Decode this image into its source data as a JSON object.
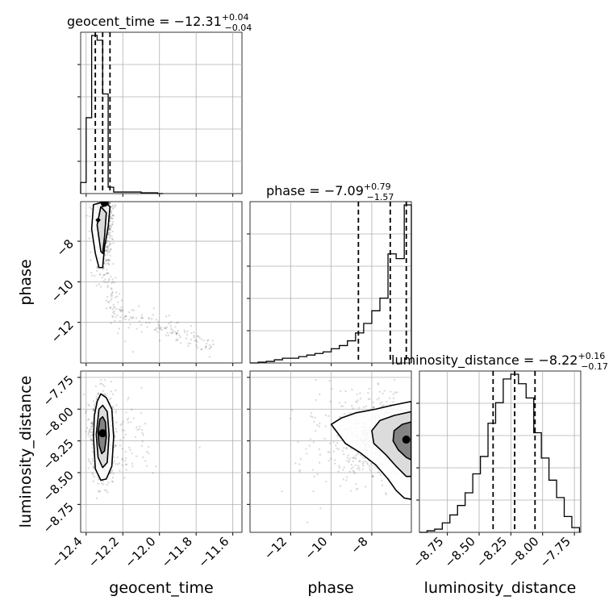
{
  "chart_data": {
    "type": "corner",
    "parameters": [
      "geocent_time",
      "phase",
      "luminosity_distance"
    ],
    "titles": [
      {
        "param": "geocent_time",
        "text": "geocent_time = −12.31",
        "plus": "+0.04",
        "minus": "−0.04"
      },
      {
        "param": "phase",
        "text": "phase = −7.09",
        "plus": "+0.79",
        "minus": "−1.57"
      },
      {
        "param": "luminosity_distance",
        "text": "luminosity_distance = −8.22",
        "plus": "+0.16",
        "minus": "−0.17"
      }
    ],
    "axis_labels": {
      "geocent_time": "geocent_time",
      "phase": "phase",
      "luminosity_distance": "luminosity_distance"
    },
    "ranges": {
      "geocent_time": [
        -12.43,
        -11.55
      ],
      "phase": [
        -14.0,
        -6.05
      ],
      "luminosity_distance": [
        -8.97,
        -7.7
      ]
    },
    "ticks": {
      "geocent_time": [
        {
          "v": -12.4,
          "label": "−12.4"
        },
        {
          "v": -12.2,
          "label": "−12.2"
        },
        {
          "v": -12.0,
          "label": "−12.0"
        },
        {
          "v": -11.8,
          "label": "−11.8"
        },
        {
          "v": -11.6,
          "label": "−11.6"
        }
      ],
      "phase": [
        {
          "v": -12,
          "label": "−12"
        },
        {
          "v": -10,
          "label": "−10"
        },
        {
          "v": -8,
          "label": "−8"
        }
      ],
      "luminosity_distance": [
        {
          "v": -8.75,
          "label": "−8.75"
        },
        {
          "v": -8.5,
          "label": "−8.50"
        },
        {
          "v": -8.25,
          "label": "−8.25"
        },
        {
          "v": -8.0,
          "label": "−8.00"
        },
        {
          "v": -7.75,
          "label": "−7.75"
        }
      ]
    },
    "quantiles": {
      "geocent_time": [
        -12.35,
        -12.31,
        -12.27
      ],
      "phase": [
        -8.66,
        -7.09,
        -6.3
      ],
      "luminosity_distance": [
        -8.39,
        -8.22,
        -8.06
      ]
    },
    "histograms": {
      "geocent_time": {
        "edges": [
          -12.43,
          -12.4,
          -12.37,
          -12.34,
          -12.31,
          -12.28,
          -12.25,
          -12.22,
          -12.19,
          -12.16,
          -12.13,
          -12.1,
          -12.07,
          -12.04,
          -12.01,
          -11.98
        ],
        "heights": [
          0.07,
          0.48,
          1.0,
          0.97,
          0.63,
          0.04,
          0.01,
          0.01,
          0.01,
          0.01,
          0.01,
          0.005,
          0.005,
          0.005,
          0.0
        ]
      },
      "phase": {
        "edges": [
          -14.0,
          -13.6,
          -13.2,
          -12.8,
          -12.4,
          -12.0,
          -11.6,
          -11.2,
          -10.8,
          -10.4,
          -10.0,
          -9.6,
          -9.2,
          -8.8,
          -8.4,
          -8.0,
          -7.6,
          -7.2,
          -6.8,
          -6.4,
          -6.05
        ],
        "heights": [
          0.0,
          0.005,
          0.01,
          0.02,
          0.03,
          0.03,
          0.04,
          0.05,
          0.06,
          0.07,
          0.09,
          0.11,
          0.14,
          0.19,
          0.25,
          0.33,
          0.41,
          0.69,
          0.66,
          1.0
        ]
      },
      "luminosity_distance": {
        "edges": [
          -8.97,
          -8.91,
          -8.85,
          -8.79,
          -8.73,
          -8.67,
          -8.61,
          -8.55,
          -8.49,
          -8.43,
          -8.37,
          -8.31,
          -8.25,
          -8.19,
          -8.13,
          -8.07,
          -8.01,
          -7.95,
          -7.89,
          -7.83,
          -7.77,
          -7.71
        ],
        "heights": [
          0.0,
          0.01,
          0.02,
          0.06,
          0.11,
          0.17,
          0.25,
          0.37,
          0.48,
          0.69,
          0.82,
          0.97,
          1.0,
          0.94,
          0.85,
          0.63,
          0.47,
          0.33,
          0.22,
          0.1,
          0.03
        ]
      }
    },
    "joint_2d": [
      {
        "x": "geocent_time",
        "y": "phase",
        "density": "banana",
        "peak": [
          -12.3,
          -6.1
        ],
        "contours": [
          [
            [
              -12.37,
              -7.4
            ],
            [
              -12.35,
              -8.6
            ],
            [
              -12.33,
              -9.3
            ],
            [
              -12.31,
              -9.3
            ],
            [
              -12.3,
              -8.3
            ],
            [
              -12.28,
              -7.3
            ],
            [
              -12.27,
              -6.3
            ],
            [
              -12.3,
              -6.05
            ],
            [
              -12.36,
              -6.2
            ]
          ],
          [
            [
              -12.34,
              -7.2
            ],
            [
              -12.32,
              -8.5
            ],
            [
              -12.31,
              -8.6
            ],
            [
              -12.3,
              -7.8
            ],
            [
              -12.29,
              -6.6
            ],
            [
              -12.32,
              -6.3
            ]
          ],
          [
            [
              -12.31,
              -6.3
            ],
            [
              -12.28,
              -6.15
            ],
            [
              -12.295,
              -6.05
            ],
            [
              -12.315,
              -6.12
            ]
          ],
          [
            [
              -12.345,
              -6.95
            ],
            [
              -12.335,
              -7.05
            ],
            [
              -12.325,
              -6.95
            ],
            [
              -12.335,
              -6.88
            ]
          ]
        ]
      },
      {
        "x": "geocent_time",
        "y": "luminosity_distance",
        "density": "blob",
        "peak": [
          -12.31,
          -8.19
        ],
        "contours": [
          [
            [
              -12.34,
              -7.94
            ],
            [
              -12.32,
              -7.88
            ],
            [
              -12.29,
              -7.91
            ],
            [
              -12.26,
              -8.0
            ],
            [
              -12.25,
              -8.22
            ],
            [
              -12.26,
              -8.45
            ],
            [
              -12.29,
              -8.55
            ],
            [
              -12.32,
              -8.56
            ],
            [
              -12.35,
              -8.47
            ],
            [
              -12.36,
              -8.22
            ],
            [
              -12.355,
              -8.05
            ]
          ],
          [
            [
              -12.33,
              -8.0
            ],
            [
              -12.31,
              -7.97
            ],
            [
              -12.285,
              -8.02
            ],
            [
              -12.275,
              -8.2
            ],
            [
              -12.285,
              -8.42
            ],
            [
              -12.31,
              -8.46
            ],
            [
              -12.335,
              -8.38
            ],
            [
              -12.345,
              -8.2
            ]
          ],
          [
            [
              -12.325,
              -8.08
            ],
            [
              -12.31,
              -8.06
            ],
            [
              -12.295,
              -8.1
            ],
            [
              -12.29,
              -8.22
            ],
            [
              -12.3,
              -8.33
            ],
            [
              -12.315,
              -8.35
            ],
            [
              -12.33,
              -8.28
            ],
            [
              -12.335,
              -8.18
            ]
          ]
        ]
      },
      {
        "x": "phase",
        "y": "luminosity_distance",
        "density": "wedge",
        "peak": [
          -6.3,
          -8.24
        ],
        "contours": [
          [
            [
              -6.05,
              -7.94
            ],
            [
              -7.0,
              -7.97
            ],
            [
              -7.8,
              -8.0
            ],
            [
              -8.8,
              -8.03
            ],
            [
              -9.5,
              -8.07
            ],
            [
              -10.0,
              -8.12
            ],
            [
              -9.3,
              -8.27
            ],
            [
              -8.6,
              -8.34
            ],
            [
              -7.8,
              -8.44
            ],
            [
              -7.2,
              -8.55
            ],
            [
              -6.8,
              -8.64
            ],
            [
              -6.4,
              -8.7
            ],
            [
              -6.05,
              -8.71
            ]
          ],
          [
            [
              -6.05,
              -8.02
            ],
            [
              -6.9,
              -8.05
            ],
            [
              -7.6,
              -8.09
            ],
            [
              -8.0,
              -8.17
            ],
            [
              -7.9,
              -8.27
            ],
            [
              -7.3,
              -8.36
            ],
            [
              -6.8,
              -8.45
            ],
            [
              -6.3,
              -8.53
            ],
            [
              -6.05,
              -8.53
            ]
          ],
          [
            [
              -6.05,
              -8.1
            ],
            [
              -6.5,
              -8.12
            ],
            [
              -6.9,
              -8.17
            ],
            [
              -6.95,
              -8.25
            ],
            [
              -6.7,
              -8.32
            ],
            [
              -6.3,
              -8.38
            ],
            [
              -6.05,
              -8.4
            ]
          ]
        ]
      }
    ],
    "grid": true
  }
}
